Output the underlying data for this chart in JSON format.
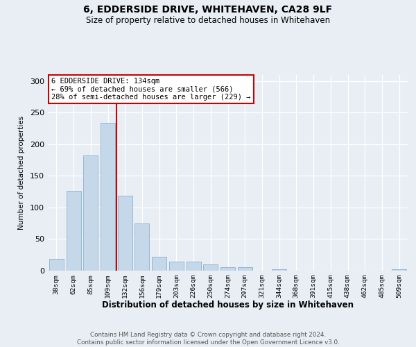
{
  "title": "6, EDDERSIDE DRIVE, WHITEHAVEN, CA28 9LF",
  "subtitle": "Size of property relative to detached houses in Whitehaven",
  "xlabel": "Distribution of detached houses by size in Whitehaven",
  "ylabel": "Number of detached properties",
  "categories": [
    "38sqm",
    "62sqm",
    "85sqm",
    "109sqm",
    "132sqm",
    "156sqm",
    "179sqm",
    "203sqm",
    "226sqm",
    "250sqm",
    "274sqm",
    "297sqm",
    "321sqm",
    "344sqm",
    "368sqm",
    "391sqm",
    "415sqm",
    "438sqm",
    "462sqm",
    "485sqm",
    "509sqm"
  ],
  "values": [
    19,
    126,
    182,
    234,
    118,
    75,
    22,
    14,
    14,
    10,
    5,
    5,
    0,
    2,
    0,
    0,
    0,
    0,
    0,
    0,
    2
  ],
  "bar_color": "#c5d8ea",
  "bar_edge_color": "#8ab0cc",
  "vline_color": "#cc0000",
  "vline_index": 3.5,
  "annotation_line1": "6 EDDERSIDE DRIVE: 134sqm",
  "annotation_line2": "← 69% of detached houses are smaller (566)",
  "annotation_line3": "28% of semi-detached houses are larger (229) →",
  "ann_box_facecolor": "white",
  "ann_box_edgecolor": "#cc0000",
  "ylim_max": 310,
  "yticks": [
    0,
    50,
    100,
    150,
    200,
    250,
    300
  ],
  "bg_color": "#e8eef4",
  "grid_color": "#ffffff",
  "footer_line1": "Contains HM Land Registry data © Crown copyright and database right 2024.",
  "footer_line2": "Contains public sector information licensed under the Open Government Licence v3.0."
}
